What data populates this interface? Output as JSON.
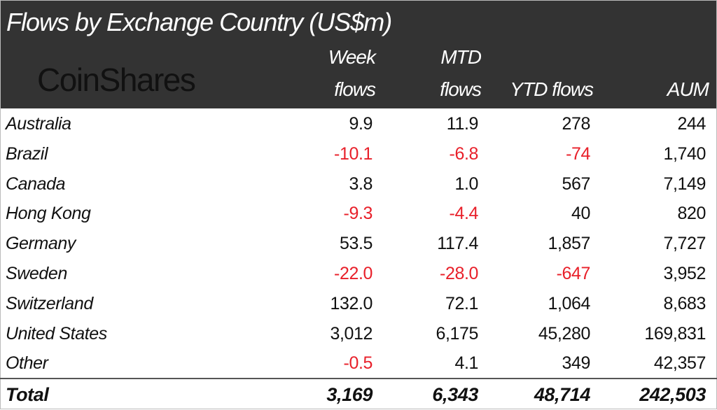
{
  "title": "Flows by Exchange Country (US$m)",
  "logo_text": "CoinShares",
  "columns": [
    {
      "line1": "Week",
      "line2": "flows"
    },
    {
      "line1": "MTD",
      "line2": "flows"
    },
    {
      "line1": "",
      "line2": "YTD flows"
    },
    {
      "line1": "",
      "line2": "AUM"
    }
  ],
  "colors": {
    "header_bg": "#333333",
    "negative": "#e8202a",
    "text": "#111111"
  },
  "chart_data": {
    "type": "table",
    "title": "Flows by Exchange Country (US$m)",
    "headers": [
      "Week flows",
      "MTD flows",
      "YTD flows",
      "AUM"
    ],
    "rows": [
      {
        "name": "Australia",
        "values": [
          "9.9",
          "11.9",
          "278",
          "244"
        ]
      },
      {
        "name": "Brazil",
        "values": [
          "-10.1",
          "-6.8",
          "-74",
          "1,740"
        ]
      },
      {
        "name": "Canada",
        "values": [
          "3.8",
          "1.0",
          "567",
          "7,149"
        ]
      },
      {
        "name": "Hong Kong",
        "values": [
          "-9.3",
          "-4.4",
          "40",
          "820"
        ]
      },
      {
        "name": "Germany",
        "values": [
          "53.5",
          "117.4",
          "1,857",
          "7,727"
        ]
      },
      {
        "name": "Sweden",
        "values": [
          "-22.0",
          "-28.0",
          "-647",
          "3,952"
        ]
      },
      {
        "name": "Switzerland",
        "values": [
          "132.0",
          "72.1",
          "1,064",
          "8,683"
        ]
      },
      {
        "name": "United States",
        "values": [
          "3,012",
          "6,175",
          "45,280",
          "169,831"
        ]
      },
      {
        "name": "Other",
        "values": [
          "-0.5",
          "4.1",
          "349",
          "42,357"
        ]
      }
    ],
    "total": {
      "name": "Total",
      "values": [
        "3,169",
        "6,343",
        "48,714",
        "242,503"
      ]
    }
  }
}
